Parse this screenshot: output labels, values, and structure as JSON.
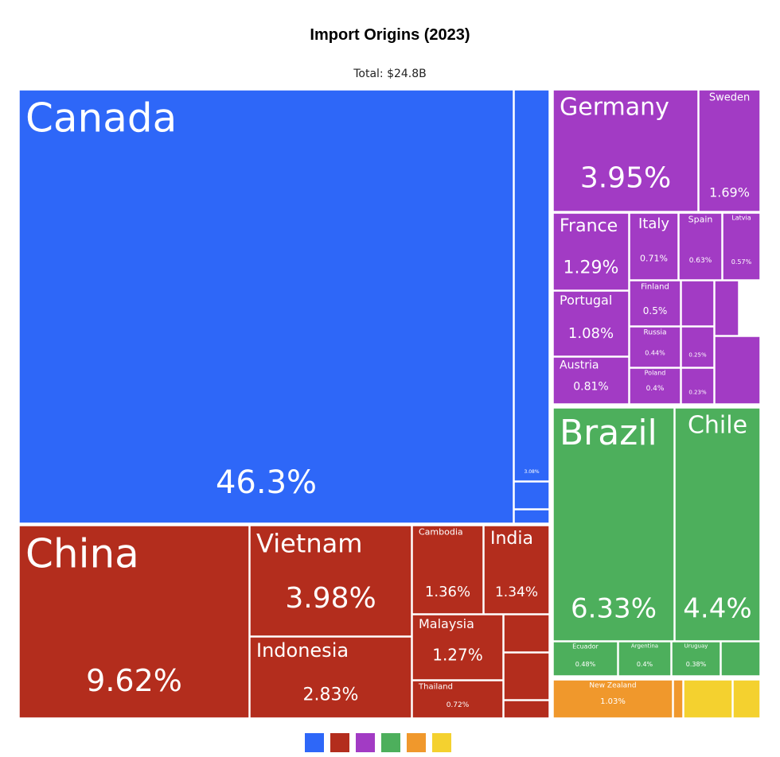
{
  "chart_data": {
    "type": "treemap",
    "title": "Import Origins (2023)",
    "subtitle": "Total: $24.8B",
    "categories": [
      "Canada",
      null,
      null,
      null,
      "China",
      "Vietnam",
      "Indonesia",
      "Cambodia",
      "India",
      "Malaysia",
      "Thailand",
      null,
      null,
      null,
      "Germany",
      "Sweden",
      "France",
      "Italy",
      "Spain",
      "Latvia",
      "Portugal",
      "Finland",
      "Russia",
      "Poland",
      "Austria",
      null,
      null,
      null,
      null,
      null,
      "Brazil",
      "Chile",
      "Ecuador",
      "Argentina",
      "Uruguay",
      null,
      "New Zealand",
      null,
      null,
      null
    ],
    "values": [
      46.3,
      3.08,
      0.15,
      0.1,
      9.62,
      3.98,
      2.83,
      1.36,
      1.34,
      1.27,
      0.72,
      0.4,
      0.3,
      0.15,
      3.95,
      1.69,
      1.29,
      0.71,
      0.63,
      0.57,
      1.08,
      0.5,
      0.44,
      0.4,
      0.81,
      0.25,
      0.23,
      0.3,
      0.2,
      0.15,
      6.33,
      4.4,
      0.48,
      0.4,
      0.38,
      0.1,
      1.03,
      0.08,
      0.5,
      0.3
    ],
    "value_labels": [
      "46.3%",
      "3.08%",
      null,
      null,
      "9.62%",
      "3.98%",
      "2.83%",
      "1.36%",
      "1.34%",
      "1.27%",
      "0.72%",
      null,
      null,
      null,
      "3.95%",
      "1.69%",
      "1.29%",
      "0.71%",
      "0.63%",
      "0.57%",
      "1.08%",
      "0.5%",
      "0.44%",
      "0.4%",
      "0.81%",
      "0.25%",
      "0.23%",
      null,
      null,
      null,
      "6.33%",
      "4.4%",
      "0.48%",
      "0.4%",
      "0.38%",
      null,
      "1.03%",
      null,
      null,
      null
    ],
    "colors": [
      "#2e67f8",
      "#2e67f8",
      "#2e67f8",
      "#2e67f8",
      "#b32d1d",
      "#b32d1d",
      "#b32d1d",
      "#b32d1d",
      "#b32d1d",
      "#b32d1d",
      "#b32d1d",
      "#b32d1d",
      "#b32d1d",
      "#b32d1d",
      "#a23bc4",
      "#a23bc4",
      "#a23bc4",
      "#a23bc4",
      "#a23bc4",
      "#a23bc4",
      "#a23bc4",
      "#a23bc4",
      "#a23bc4",
      "#a23bc4",
      "#a23bc4",
      "#a23bc4",
      "#a23bc4",
      "#a23bc4",
      "#a23bc4",
      "#a23bc4",
      "#4daf5c",
      "#4daf5c",
      "#4daf5c",
      "#4daf5c",
      "#4daf5c",
      "#4daf5c",
      "#f0982c",
      "#f0982c",
      "#f4d12f",
      "#f4d12f"
    ]
  }
}
